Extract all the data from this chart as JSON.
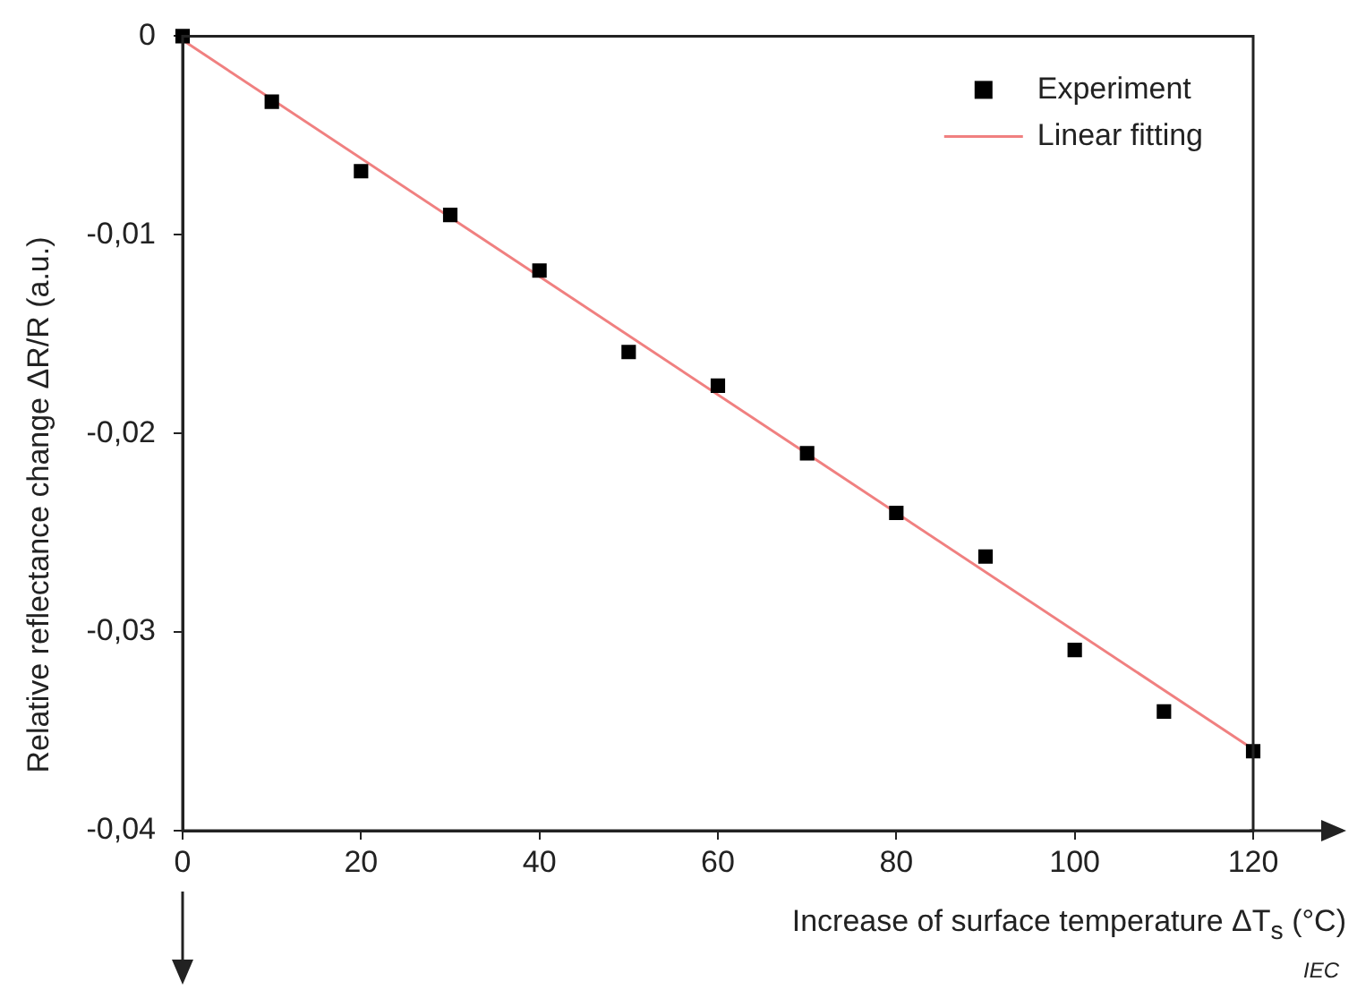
{
  "chart_data": {
    "type": "scatter",
    "xlabel": "Increase of surface temperature ΔT$_{s}$  (°C)",
    "ylabel": "Relative reflectance change ΔR/R (a.u.)",
    "xlim": [
      0,
      120
    ],
    "xticks": [
      0,
      20,
      40,
      60,
      80,
      100,
      120
    ],
    "ylim": [
      -0.04,
      0
    ],
    "yticks": [
      {
        "value": -0.04,
        "label": "-0,04"
      },
      {
        "value": -0.03,
        "label": "-0,03"
      },
      {
        "value": -0.02,
        "label": "-0,02"
      },
      {
        "value": -0.01,
        "label": "-0,01"
      },
      0
    ],
    "grid": false,
    "legend": "top right",
    "annotations": [
      "IEC"
    ],
    "series": [
      {
        "name": "Experiment",
        "type": "scatter",
        "marker": "square",
        "color": "#000000",
        "x": [
          0,
          10,
          20,
          30,
          40,
          50,
          60,
          70,
          80,
          90,
          100,
          110,
          120
        ],
        "values": [
          0,
          -0.0033,
          -0.0068,
          -0.009,
          -0.0118,
          -0.0159,
          -0.0176,
          -0.021,
          -0.024,
          -0.0262,
          -0.0309,
          -0.034,
          -0.036
        ]
      },
      {
        "name": "Linear fitting",
        "type": "line",
        "marker": "none",
        "color": "#f08080",
        "x": [
          0,
          120
        ],
        "values": [
          -0.0002,
          -0.0359
        ]
      }
    ]
  }
}
